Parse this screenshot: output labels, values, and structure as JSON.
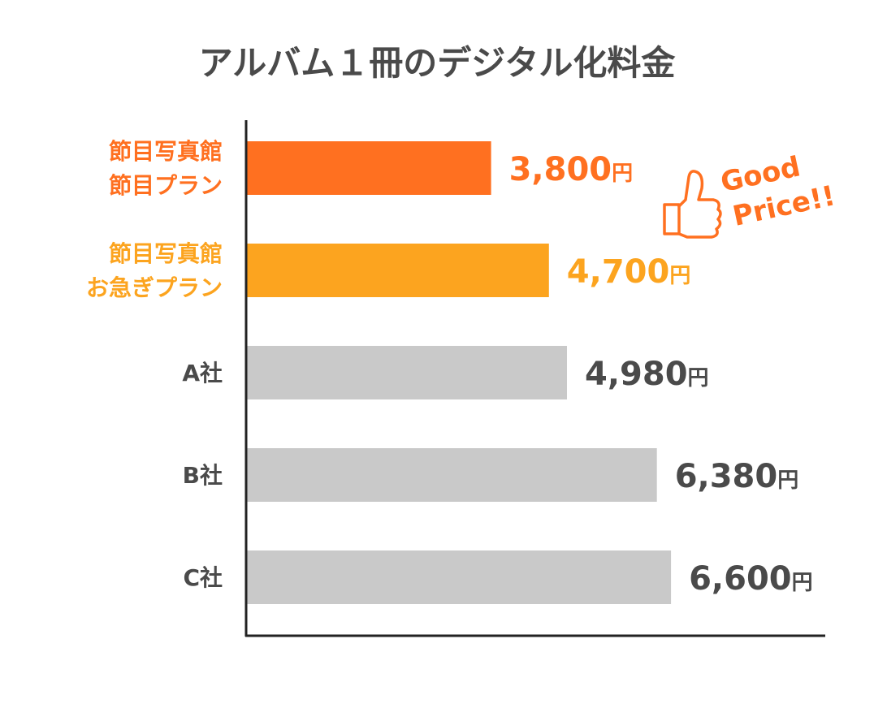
{
  "chart_data": {
    "type": "bar",
    "orientation": "horizontal",
    "title": "アルバム１冊のデジタル化料金",
    "categories": [
      [
        "節目写真館",
        "節目プラン"
      ],
      [
        "節目写真館",
        "お急ぎプラン"
      ],
      [
        "A社"
      ],
      [
        "B社"
      ],
      [
        "C社"
      ]
    ],
    "values": [
      3800,
      4700,
      4980,
      6380,
      6600
    ],
    "value_labels": [
      "3,800",
      "4,700",
      "4,980",
      "6,380",
      "6,600"
    ],
    "unit": "円",
    "colors": [
      "#ff7020",
      "#fca41f",
      "#c9c9c9",
      "#c9c9c9",
      "#c9c9c9"
    ],
    "text_colors": [
      "#ff7020",
      "#fca41f",
      "#4a4a4a",
      "#4a4a4a",
      "#4a4a4a"
    ],
    "xlim": [
      0,
      9000
    ],
    "grid": false,
    "legend": "none"
  },
  "badge": {
    "icon": "thumbs-up-icon",
    "lines": [
      "Good",
      "Price!!"
    ],
    "color": "#ff7020"
  }
}
